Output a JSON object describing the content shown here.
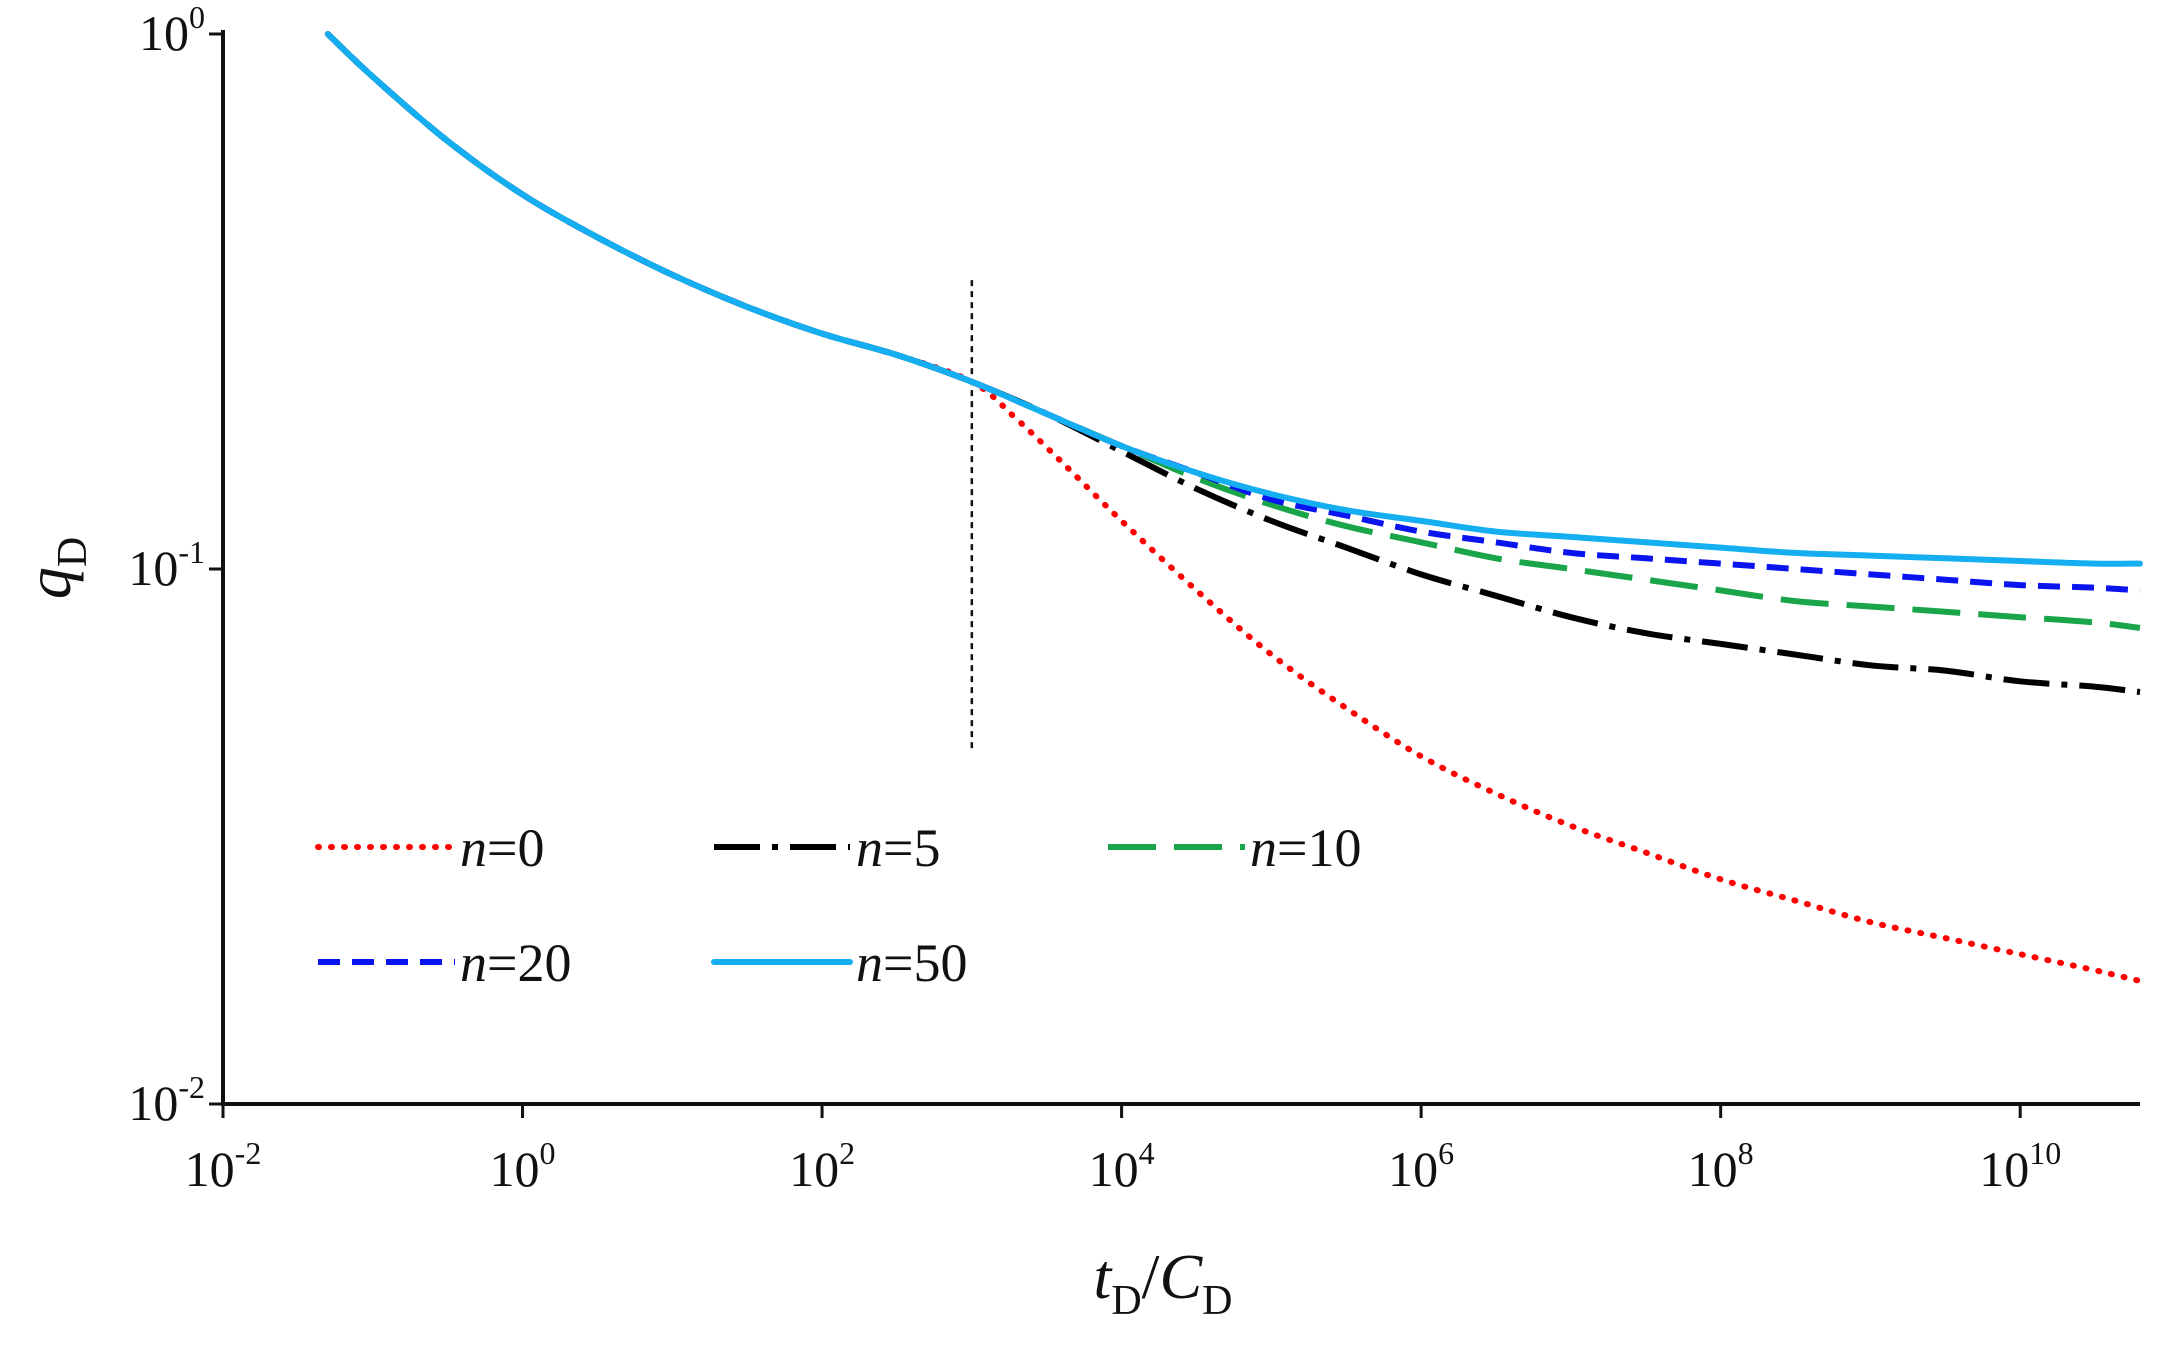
{
  "chart_data": {
    "type": "line",
    "title": "",
    "xlabel": {
      "main": "t",
      "sub": "D",
      "sep": "/",
      "main2": "C",
      "sub2": "D"
    },
    "ylabel": {
      "main": "q",
      "sub": "D"
    },
    "x_scale": "log",
    "y_scale": "log",
    "xlim_exp": [
      -2,
      10.8
    ],
    "ylim_exp": [
      -2,
      0
    ],
    "x_ticks": [
      {
        "base": "10",
        "exp": "-2",
        "value_exp": -2
      },
      {
        "base": "10",
        "exp": "0",
        "value_exp": 0
      },
      {
        "base": "10",
        "exp": "2",
        "value_exp": 2
      },
      {
        "base": "10",
        "exp": "4",
        "value_exp": 4
      },
      {
        "base": "10",
        "exp": "6",
        "value_exp": 6
      },
      {
        "base": "10",
        "exp": "8",
        "value_exp": 8
      },
      {
        "base": "10",
        "exp": "10",
        "value_exp": 10
      }
    ],
    "y_ticks": [
      {
        "base": "10",
        "exp": "0",
        "value_exp": 0
      },
      {
        "base": "10",
        "exp": "-1",
        "value_exp": -1
      },
      {
        "base": "10",
        "exp": "-2",
        "value_exp": -2
      }
    ],
    "reference_line": {
      "style": "dotted",
      "x_exp": 3,
      "y_exp_range": [
        -1.34,
        -0.46
      ]
    },
    "legend_position": "lower-left",
    "series": [
      {
        "name": "n=0",
        "label_italic": "n",
        "label_value": "=0",
        "color": "#ff0000",
        "style": "dotted",
        "log_x": [
          -1.3,
          -1,
          -0.5,
          0,
          0.5,
          1,
          1.5,
          2,
          2.5,
          3,
          3.3,
          3.6,
          4,
          4.5,
          5,
          5.5,
          6,
          6.5,
          7,
          7.5,
          8,
          8.5,
          9,
          9.5,
          10,
          10.5,
          10.8
        ],
        "log_y": [
          0.0,
          -0.08,
          -0.2,
          -0.3,
          -0.38,
          -0.45,
          -0.51,
          -0.56,
          -0.6,
          -0.65,
          -0.72,
          -0.8,
          -0.91,
          -1.04,
          -1.16,
          -1.26,
          -1.35,
          -1.42,
          -1.48,
          -1.53,
          -1.58,
          -1.62,
          -1.66,
          -1.69,
          -1.72,
          -1.75,
          -1.77
        ]
      },
      {
        "name": "n=5",
        "label_italic": "n",
        "label_value": "=5",
        "color": "#000000",
        "style": "dash-dot",
        "log_x": [
          -1.3,
          -1,
          -0.5,
          0,
          0.5,
          1,
          1.5,
          2,
          2.5,
          3,
          3.5,
          4,
          4.5,
          5,
          5.5,
          6,
          6.5,
          7,
          7.5,
          8,
          8.5,
          9,
          9.5,
          10,
          10.5,
          10.8
        ],
        "log_y": [
          0.0,
          -0.08,
          -0.2,
          -0.3,
          -0.38,
          -0.45,
          -0.51,
          -0.56,
          -0.6,
          -0.65,
          -0.71,
          -0.78,
          -0.85,
          -0.91,
          -0.96,
          -1.01,
          -1.05,
          -1.09,
          -1.12,
          -1.14,
          -1.16,
          -1.18,
          -1.19,
          -1.21,
          -1.22,
          -1.23
        ]
      },
      {
        "name": "n=10",
        "label_italic": "n",
        "label_value": "=10",
        "color": "#1aa54a",
        "style": "long-dash",
        "log_x": [
          -1.3,
          -1,
          -0.5,
          0,
          0.5,
          1,
          1.5,
          2,
          2.5,
          3,
          3.5,
          4,
          4.5,
          5,
          5.5,
          6,
          6.5,
          7,
          7.5,
          8,
          8.5,
          9,
          9.5,
          10,
          10.5,
          10.8
        ],
        "log_y": [
          0.0,
          -0.08,
          -0.2,
          -0.3,
          -0.38,
          -0.45,
          -0.51,
          -0.56,
          -0.6,
          -0.65,
          -0.71,
          -0.77,
          -0.83,
          -0.88,
          -0.92,
          -0.95,
          -0.98,
          -1.0,
          -1.02,
          -1.04,
          -1.06,
          -1.07,
          -1.08,
          -1.09,
          -1.1,
          -1.11
        ]
      },
      {
        "name": "n=20",
        "label_italic": "n",
        "label_value": "=20",
        "color": "#0a14ee",
        "style": "dashed",
        "log_x": [
          -1.3,
          -1,
          -0.5,
          0,
          0.5,
          1,
          1.5,
          2,
          2.5,
          3,
          3.5,
          4,
          4.5,
          5,
          5.5,
          6,
          6.5,
          7,
          7.5,
          8,
          8.5,
          9,
          9.5,
          10,
          10.5,
          10.8
        ],
        "log_y": [
          0.0,
          -0.08,
          -0.2,
          -0.3,
          -0.38,
          -0.45,
          -0.51,
          -0.56,
          -0.6,
          -0.65,
          -0.71,
          -0.77,
          -0.82,
          -0.87,
          -0.9,
          -0.93,
          -0.95,
          -0.97,
          -0.98,
          -0.99,
          -1.0,
          -1.01,
          -1.02,
          -1.03,
          -1.035,
          -1.04
        ]
      },
      {
        "name": "n=50",
        "label_italic": "n",
        "label_value": "=50",
        "color": "#15aef0",
        "style": "solid",
        "log_x": [
          -1.3,
          -1,
          -0.5,
          0,
          0.5,
          1,
          1.5,
          2,
          2.5,
          3,
          3.5,
          4,
          4.5,
          5,
          5.5,
          6,
          6.5,
          7,
          7.5,
          8,
          8.5,
          9,
          9.5,
          10,
          10.5,
          10.8
        ],
        "log_y": [
          0.0,
          -0.08,
          -0.2,
          -0.3,
          -0.38,
          -0.45,
          -0.51,
          -0.56,
          -0.6,
          -0.65,
          -0.71,
          -0.77,
          -0.82,
          -0.86,
          -0.89,
          -0.91,
          -0.93,
          -0.94,
          -0.95,
          -0.96,
          -0.97,
          -0.975,
          -0.98,
          -0.985,
          -0.99,
          -0.99
        ]
      }
    ]
  }
}
